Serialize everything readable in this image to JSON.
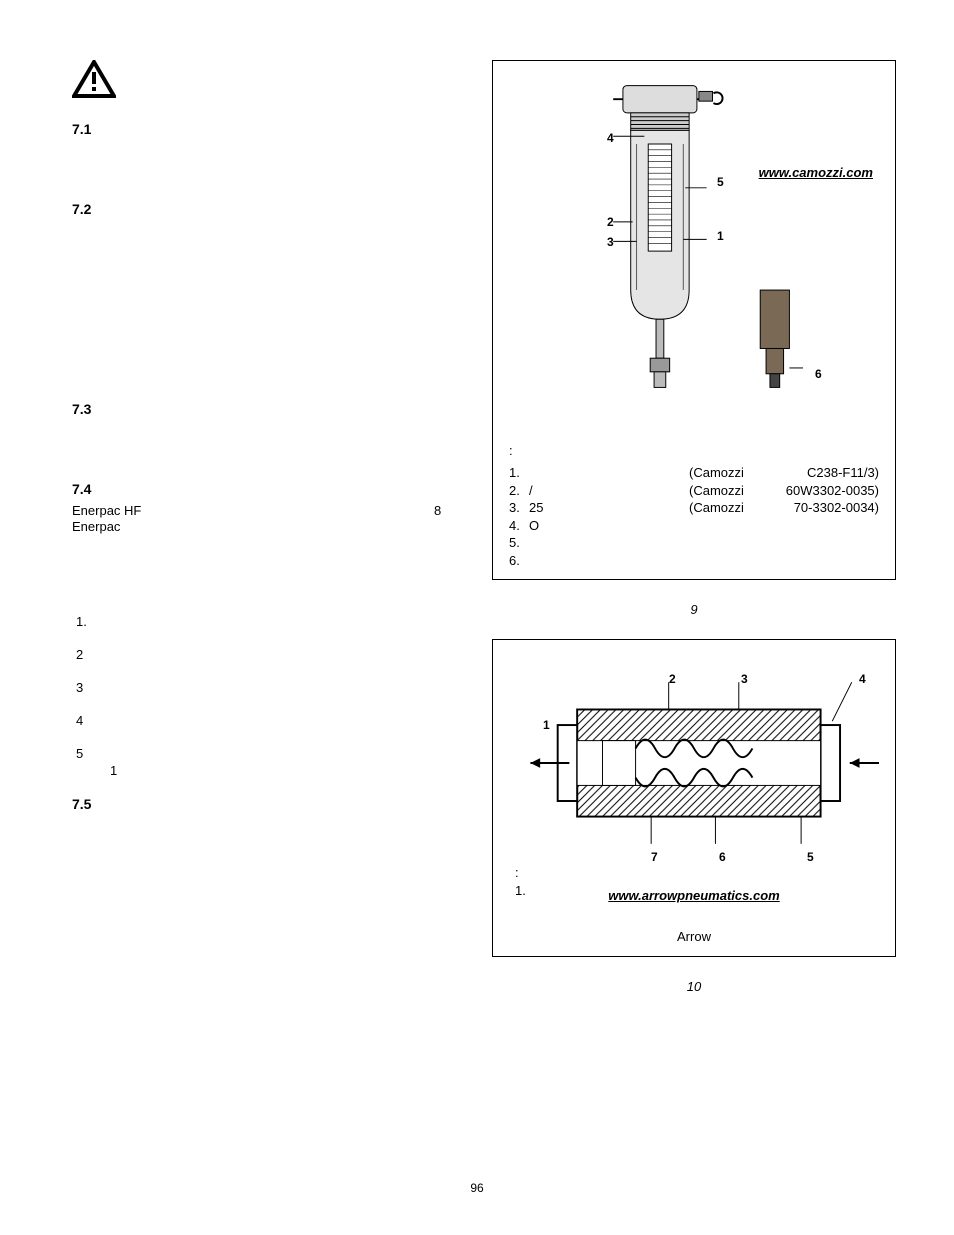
{
  "left": {
    "s71": {
      "head": "7.1"
    },
    "s72": {
      "head": "7.2"
    },
    "s73": {
      "head": "7.3"
    },
    "float8": "8",
    "s74": {
      "head": "7.4",
      "line1": "Enerpac HF",
      "line2": "Enerpac"
    },
    "list": {
      "i1": "1.",
      "i2": "2",
      "i3": "3",
      "i4": "4",
      "i5": "5",
      "i5_sub": "1",
      "after": "7.5"
    }
  },
  "fig9": {
    "link": "www.camozzi.com",
    "callouts": {
      "c1": "1",
      "c2": "2",
      "c3": "3",
      "c4": "4",
      "c5": "5",
      "c6": "6"
    },
    "parts_head": ":",
    "rows": [
      {
        "n": "1.",
        "mid": "",
        "brand": "(Camozzi",
        "pn": "C238-F11/3)"
      },
      {
        "n": "2.",
        "mid": "/",
        "brand": "(Camozzi",
        "pn": "60W3302-0035)"
      },
      {
        "n": "3.",
        "mid": "25",
        "brand": "(Camozzi",
        "pn": "70-3302-0034)"
      },
      {
        "n": "4.",
        "mid": "O",
        "brand": "",
        "pn": ""
      },
      {
        "n": "5.",
        "mid": "",
        "brand": "",
        "pn": ""
      },
      {
        "n": "6.",
        "mid": "",
        "brand": "",
        "pn": ""
      }
    ],
    "caption": "9"
  },
  "fig10": {
    "callouts": {
      "c1": "1",
      "c2": "2",
      "c3": "3",
      "c4": "4",
      "c5": "5",
      "c6": "6",
      "c7": "7"
    },
    "parts_head": ":",
    "item1": "1.",
    "link": "www.arrowpneumatics.com",
    "brand_line": "Arrow",
    "caption": "10"
  },
  "page": "96"
}
